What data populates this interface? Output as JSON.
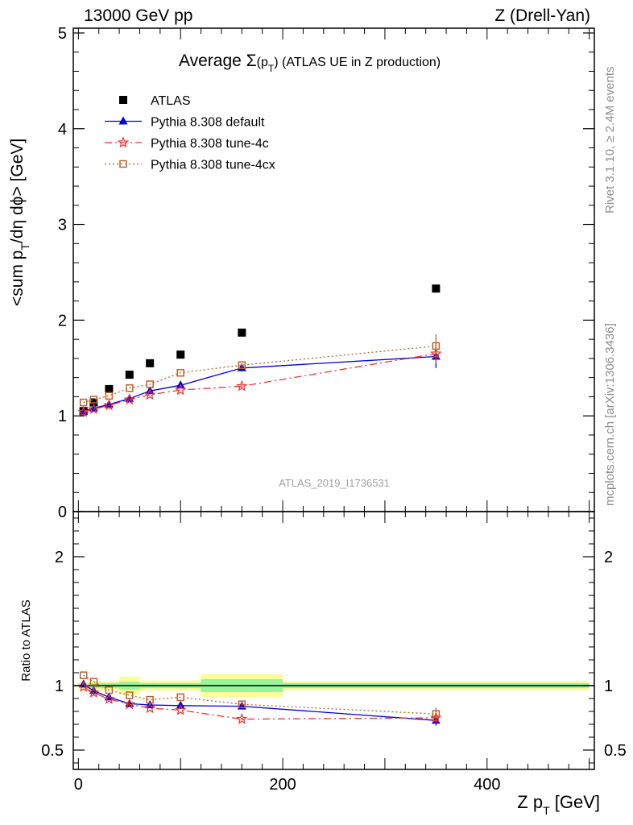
{
  "header": {
    "left": "13000 GeV pp",
    "right": "Z (Drell-Yan)"
  },
  "side_text": {
    "rivet": "Rivet 3.1.10, ≥ 2.4M events",
    "mcplots": "mcplots.cern.ch [arXiv:1306.3436]"
  },
  "chart_data": [
    {
      "type": "scatter",
      "title_prefix": "Average ",
      "title_sigma": "Σ",
      "title_mid": "(p",
      "title_sub": "T",
      "title_suffix": ") (ATLAS UE in Z production)",
      "ylabel": "<sum p_T/dη dϕ> [GeV]",
      "ylabel_main": "<sum p",
      "ylabel_sub": "T",
      "ylabel_rest": "/dη dϕ> [GeV]",
      "xlim": [
        -5,
        505
      ],
      "ylim": [
        0,
        5.05
      ],
      "yticks": [
        0,
        1,
        2,
        3,
        4,
        5
      ],
      "ytick_labels": [
        "0",
        "1",
        "2",
        "3",
        "4",
        "5"
      ],
      "watermark": "ATLAS_2019_I1736531",
      "legend_position": "top-left",
      "x": [
        5,
        15,
        30,
        50,
        70,
        100,
        160,
        350
      ],
      "series": [
        {
          "name": "ATLAS",
          "color": "#000000",
          "marker": "square",
          "values": [
            1.05,
            1.14,
            1.28,
            1.43,
            1.55,
            1.64,
            1.87,
            2.33
          ]
        },
        {
          "name": "Pythia 8.308 default",
          "color": "#0000dd",
          "marker": "triangle",
          "values": [
            1.05,
            1.08,
            1.12,
            1.18,
            1.26,
            1.32,
            1.5,
            1.62
          ],
          "errors": [
            0,
            0,
            0,
            0,
            0,
            0,
            0.02,
            0.12
          ]
        },
        {
          "name": "Pythia 8.308 tune-4c",
          "color": "#ee3333",
          "marker": "star",
          "values": [
            1.04,
            1.07,
            1.11,
            1.17,
            1.22,
            1.27,
            1.31,
            1.65
          ],
          "errors": [
            0,
            0,
            0,
            0,
            0,
            0,
            0.02,
            0.1
          ]
        },
        {
          "name": "Pythia 8.308 tune-4cx",
          "color": "#c0622a",
          "marker": "open-square",
          "values": [
            1.14,
            1.17,
            1.21,
            1.29,
            1.33,
            1.45,
            1.53,
            1.73
          ],
          "errors": [
            0,
            0,
            0,
            0,
            0,
            0,
            0.02,
            0.12
          ]
        }
      ]
    },
    {
      "type": "scatter",
      "ylabel": "Ratio to ATLAS",
      "xlabel_main": "Z p",
      "xlabel_sub": "T",
      "xlabel_rest": " [GeV]",
      "xlim": [
        -5,
        505
      ],
      "ylim": [
        0.35,
        2.35
      ],
      "yticks": [
        0.5,
        1,
        2
      ],
      "ytick_labels": [
        "0.5",
        "1",
        "2"
      ],
      "xticks": [
        0,
        200,
        400
      ],
      "xtick_labels": [
        "0",
        "200",
        "400"
      ],
      "bands": {
        "bins": [
          [
            0,
            10
          ],
          [
            10,
            20
          ],
          [
            20,
            40
          ],
          [
            40,
            60
          ],
          [
            60,
            80
          ],
          [
            80,
            120
          ],
          [
            120,
            200
          ],
          [
            200,
            500
          ]
        ],
        "green": [
          0.015,
          0.02,
          0.02,
          0.03,
          0.02,
          0.02,
          0.05,
          0.02
        ],
        "yellow": [
          0.03,
          0.035,
          0.035,
          0.07,
          0.04,
          0.04,
          0.09,
          0.035
        ],
        "green_color": "#98f598",
        "yellow_color": "#fcfc98"
      },
      "x": [
        5,
        15,
        30,
        50,
        70,
        100,
        160,
        350
      ],
      "series": [
        {
          "name": "Pythia 8.308 default",
          "color": "#0000dd",
          "marker": "triangle",
          "values": [
            1.01,
            0.96,
            0.91,
            0.86,
            0.85,
            0.845,
            0.84,
            0.73
          ],
          "errors": [
            0,
            0,
            0,
            0,
            0,
            0,
            0.01,
            0.04
          ]
        },
        {
          "name": "Pythia 8.308 tune-4c",
          "color": "#ee3333",
          "marker": "star",
          "values": [
            0.99,
            0.945,
            0.895,
            0.855,
            0.825,
            0.81,
            0.74,
            0.75
          ],
          "errors": [
            0,
            0,
            0,
            0,
            0,
            0,
            0.01,
            0.04
          ]
        },
        {
          "name": "Pythia 8.308 tune-4cx",
          "color": "#c0622a",
          "marker": "open-square",
          "values": [
            1.08,
            1.03,
            0.965,
            0.925,
            0.89,
            0.91,
            0.855,
            0.78
          ],
          "errors": [
            0,
            0,
            0,
            0,
            0,
            0,
            0.01,
            0.05
          ]
        }
      ]
    }
  ]
}
